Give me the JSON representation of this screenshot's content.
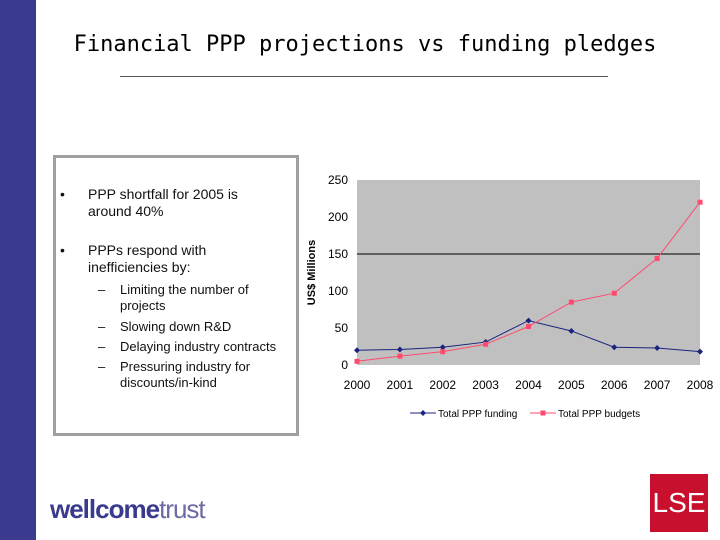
{
  "title": "Financial PPP projections vs funding pledges",
  "bullets": [
    "PPP shortfall for 2005 is around 40%",
    "PPPs respond with inefficiencies by:"
  ],
  "sub_bullets": [
    "Limiting the number of projects",
    "Slowing down R&D",
    "Delaying industry contracts",
    "Pressuring industry for discounts/in-kind"
  ],
  "logos": {
    "wellcome": "wellcome",
    "trust": "trust",
    "lse": "LSE"
  },
  "colors": {
    "band": "#3a3b8f",
    "funding": "#1a237e",
    "budgets": "#ff4a6e",
    "plot_bg": "#c0c0c0",
    "lse": "#c8102e"
  },
  "chart_data": {
    "type": "line",
    "title": "",
    "xlabel": "",
    "ylabel": "US$ Millions",
    "x": [
      "2000",
      "2001",
      "2002",
      "2003",
      "2004",
      "2005",
      "2006",
      "2007",
      "2008"
    ],
    "ylim": [
      0,
      250
    ],
    "yticks": [
      0,
      50,
      100,
      150,
      200,
      250
    ],
    "reference_line": 150,
    "legend_position": "bottom",
    "series": [
      {
        "name": "Total PPP funding",
        "values": [
          20,
          21,
          24,
          31,
          60,
          46,
          24,
          23,
          18
        ]
      },
      {
        "name": "Total PPP budgets",
        "values": [
          5,
          12,
          18,
          28,
          52,
          85,
          97,
          144,
          220
        ]
      }
    ]
  }
}
